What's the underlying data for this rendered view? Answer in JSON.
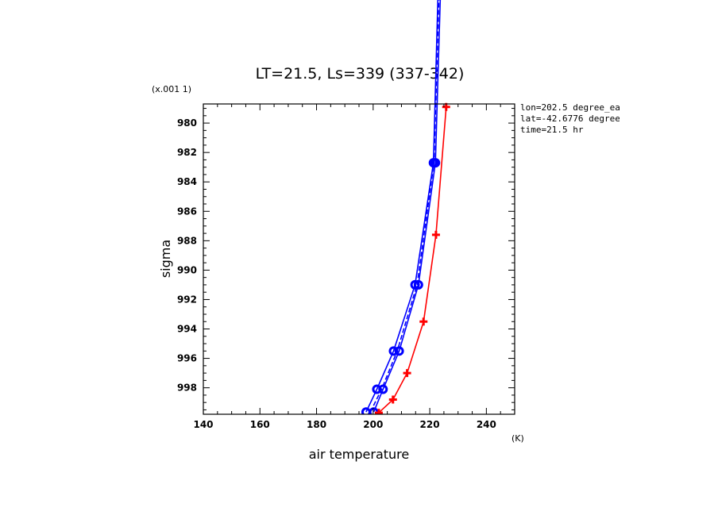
{
  "chart_data": {
    "type": "line",
    "title": "LT=21.5, Ls=339 (337-342)",
    "xlabel": "air temperature",
    "xunit": "(K)",
    "ylabel": "sigma",
    "yscale_note": "(x.001 1)",
    "xlim": [
      140,
      250
    ],
    "ylim": [
      999.8,
      978.7
    ],
    "x_ticks": [
      140,
      160,
      180,
      200,
      220,
      240
    ],
    "y_ticks": [
      980,
      982,
      984,
      986,
      988,
      990,
      992,
      994,
      996,
      998
    ],
    "info": [
      "lon=202.5 degree_ea",
      "lat=-42.6776 degree",
      "time=21.5 hr"
    ],
    "colors": {
      "blue": "#0000ff",
      "red": "#ff0000"
    },
    "series": [
      {
        "color": "blue",
        "style": "solid",
        "marker": "circle",
        "points": [
          [
            197.5,
            999.65
          ],
          [
            201.3,
            998.1
          ],
          [
            207.2,
            995.5
          ],
          [
            214.8,
            991.0
          ],
          [
            221.3,
            982.7
          ],
          [
            224.5,
            960.0
          ]
        ]
      },
      {
        "color": "blue",
        "style": "solid",
        "marker": "circle",
        "points": [
          [
            200.2,
            999.65
          ],
          [
            203.5,
            998.1
          ],
          [
            209.2,
            995.5
          ],
          [
            216.0,
            991.0
          ],
          [
            222.0,
            982.7
          ],
          [
            225.5,
            960.0
          ]
        ]
      },
      {
        "color": "blue",
        "style": "dashed",
        "marker": "none",
        "points": [
          [
            199.0,
            999.65
          ],
          [
            203.0,
            998.1
          ],
          [
            208.5,
            995.5
          ],
          [
            215.5,
            991.0
          ],
          [
            221.5,
            982.7
          ],
          [
            225.0,
            960.0
          ]
        ]
      },
      {
        "color": "red",
        "style": "solid",
        "marker": "plus",
        "points": [
          [
            202.0,
            999.7
          ],
          [
            207.0,
            998.8
          ],
          [
            212.0,
            997.0
          ],
          [
            217.8,
            993.5
          ],
          [
            222.2,
            987.6
          ],
          [
            225.8,
            978.9
          ]
        ]
      }
    ]
  }
}
